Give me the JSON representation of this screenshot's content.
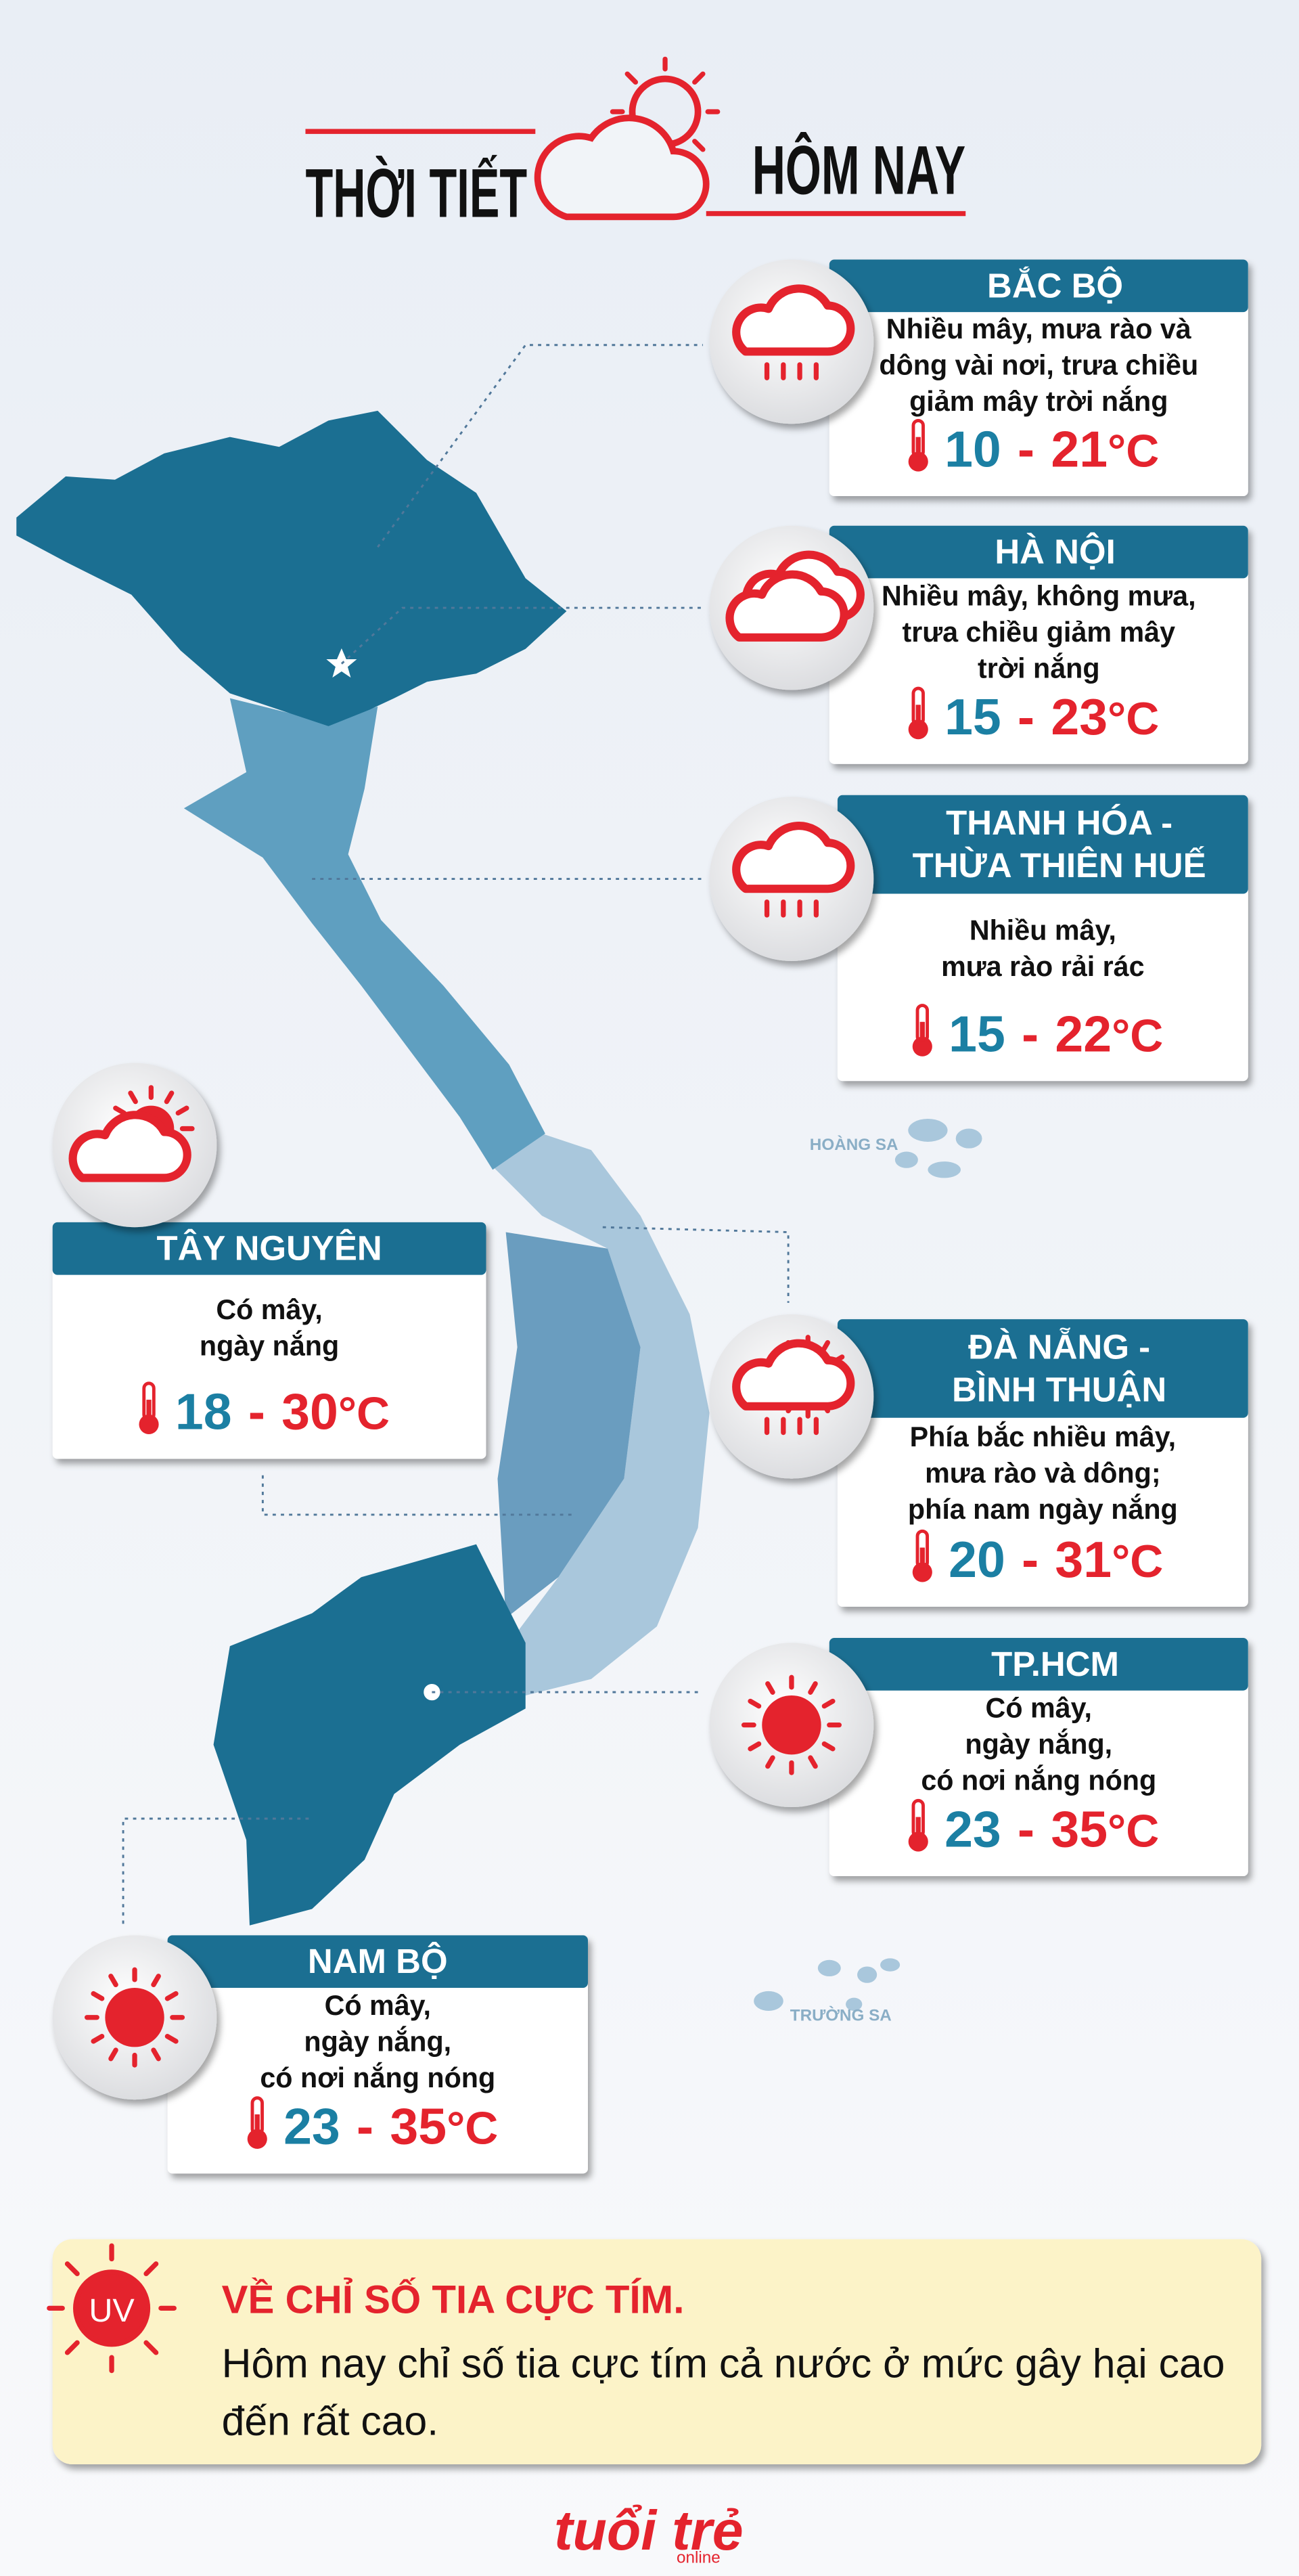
{
  "header": {
    "title_left": "THỜI TIẾT",
    "title_right": "HÔM NAY"
  },
  "cards": [
    {
      "name": [
        "BẮC BỘ"
      ],
      "description": [
        "Nhiều mây, mưa rào và",
        "dông vài nơi, trưa chiều",
        "giảm mây trời nắng"
      ],
      "low": 10,
      "dash": "-",
      "high": 21,
      "unit": "°C"
    },
    {
      "name": [
        "HÀ NỘI"
      ],
      "description": [
        "Nhiều mây, không mưa,",
        "trưa chiều giảm mây",
        "trời nắng"
      ],
      "low": 15,
      "dash": "-",
      "high": 23,
      "unit": "°C"
    },
    {
      "name": [
        "THANH HÓA -",
        "THỪA THIÊN HUẾ"
      ],
      "description": [
        "Nhiều mây,",
        "mưa rào rải rác"
      ],
      "low": 15,
      "dash": "-",
      "high": 22,
      "unit": "°C"
    },
    {
      "name": [
        "TÂY NGUYÊN"
      ],
      "description": [
        "Có mây,",
        "ngày nắng"
      ],
      "low": 18,
      "dash": "-",
      "high": 30,
      "unit": "°C"
    },
    {
      "name": [
        "ĐÀ NẴNG -",
        "BÌNH THUẬN"
      ],
      "description": [
        "Phía bắc nhiều mây,",
        "mưa rào và dông;",
        "phía nam ngày nắng"
      ],
      "low": 20,
      "dash": "-",
      "high": 31,
      "unit": "°C"
    },
    {
      "name": [
        "TP.HCM"
      ],
      "description": [
        "Có mây,",
        "ngày nắng,",
        "có nơi nắng nóng"
      ],
      "low": 23,
      "dash": "-",
      "high": 35,
      "unit": "°C"
    },
    {
      "name": [
        "NAM BỘ"
      ],
      "description": [
        "Có mây,",
        "ngày nắng,",
        "có nơi nắng nóng"
      ],
      "low": 23,
      "dash": "-",
      "high": 35,
      "unit": "°C"
    }
  ],
  "map": {
    "labels": [
      "HOÀNG SA",
      "TRƯỜNG SA"
    ]
  },
  "uv": {
    "badge": "UV",
    "title": "VỀ CHỈ SỐ TIA CỰC TÍM.",
    "text": [
      "Hôm nay chỉ số tia cực tím cả nước ở mức gây hại cao",
      "đến rất cao."
    ]
  },
  "footer": {
    "logo": "tuổi trẻ",
    "logo_sub": "online"
  }
}
